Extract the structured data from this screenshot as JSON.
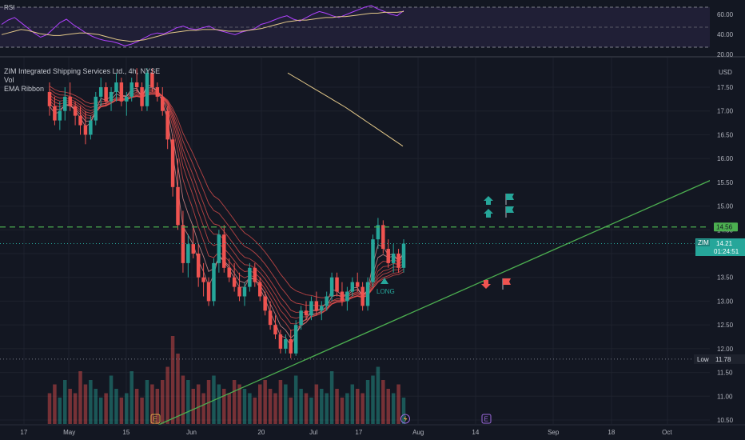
{
  "legend": {
    "title": "ZIM Integrated Shipping Services Ltd., 4h, NYSE",
    "vol": "Vol",
    "ema": "EMA Ribbon"
  },
  "rsi": {
    "label": "RSI",
    "ticks": [
      "60.00",
      "40.00",
      "20.00"
    ]
  },
  "price_axis": {
    "currency": "USD",
    "ticks": [
      "17.50",
      "17.00",
      "16.50",
      "16.00",
      "15.50",
      "15.00",
      "14.50",
      "14.00",
      "13.50",
      "13.00",
      "12.50",
      "12.00",
      "11.50",
      "11.00",
      "10.50"
    ]
  },
  "tags": {
    "level_price": "14.56",
    "ticker": "ZIM",
    "last_price": "14.21",
    "countdown": "01:24:51",
    "low_label": "Low",
    "low_price": "11.78"
  },
  "signal": {
    "text": "LONG"
  },
  "events": {
    "earnings": "E",
    "dividend": "E"
  },
  "time_axis": [
    "17",
    "May",
    "15",
    "Jun",
    "20",
    "Jul",
    "17",
    "Aug",
    "14",
    "Sep",
    "18",
    "Oct"
  ],
  "colors": {
    "up": "#26a69a",
    "down": "#ef5350",
    "trendline": "#4caf50",
    "level": "#4caf50",
    "rsi": "#b042ff",
    "rsi_ma": "#e3c889",
    "ema_ribbon": "#ef5350",
    "sma": "#e3c889"
  },
  "chart_data": {
    "type": "candlestick",
    "candles": [
      [
        17.4,
        17.6,
        16.9,
        17.1
      ],
      [
        17.1,
        17.3,
        16.7,
        16.8
      ],
      [
        16.8,
        17.2,
        16.6,
        17.0
      ],
      [
        17.0,
        17.5,
        16.8,
        17.3
      ],
      [
        17.3,
        17.6,
        17.0,
        17.1
      ],
      [
        17.1,
        17.2,
        16.7,
        16.9
      ],
      [
        16.9,
        17.1,
        16.5,
        16.7
      ],
      [
        16.7,
        17.0,
        16.3,
        16.5
      ],
      [
        16.5,
        16.9,
        16.4,
        16.8
      ],
      [
        16.8,
        17.4,
        16.7,
        17.3
      ],
      [
        17.3,
        17.7,
        17.1,
        17.5
      ],
      [
        17.5,
        17.6,
        17.1,
        17.2
      ],
      [
        17.2,
        17.5,
        17.0,
        17.4
      ],
      [
        17.4,
        17.8,
        17.2,
        17.6
      ],
      [
        17.6,
        17.7,
        17.1,
        17.2
      ],
      [
        17.2,
        17.4,
        16.9,
        17.3
      ],
      [
        17.3,
        17.7,
        17.2,
        17.6
      ],
      [
        17.6,
        17.9,
        17.4,
        17.5
      ],
      [
        17.5,
        17.6,
        17.0,
        17.1
      ],
      [
        17.1,
        17.9,
        17.0,
        17.8
      ],
      [
        17.8,
        17.9,
        17.4,
        17.5
      ],
      [
        17.5,
        17.6,
        17.2,
        17.3
      ],
      [
        17.3,
        17.5,
        16.9,
        17.0
      ],
      [
        17.0,
        17.1,
        16.2,
        16.4
      ],
      [
        16.4,
        16.5,
        15.2,
        15.4
      ],
      [
        15.4,
        16.0,
        14.5,
        14.6
      ],
      [
        14.6,
        14.9,
        13.6,
        13.8
      ],
      [
        13.8,
        14.4,
        13.5,
        14.2
      ],
      [
        14.2,
        14.6,
        13.9,
        14.0
      ],
      [
        14.0,
        14.2,
        13.3,
        13.5
      ],
      [
        13.5,
        13.8,
        13.1,
        13.4
      ],
      [
        13.4,
        13.5,
        12.9,
        13.0
      ],
      [
        13.0,
        13.9,
        12.9,
        13.8
      ],
      [
        13.8,
        14.5,
        13.6,
        14.4
      ],
      [
        14.4,
        14.6,
        13.6,
        13.7
      ],
      [
        13.7,
        13.9,
        13.4,
        13.5
      ],
      [
        13.5,
        13.8,
        13.2,
        13.3
      ],
      [
        13.3,
        13.6,
        13.0,
        13.1
      ],
      [
        13.1,
        13.4,
        12.9,
        13.3
      ],
      [
        13.3,
        13.8,
        13.2,
        13.7
      ],
      [
        13.7,
        13.8,
        13.3,
        13.4
      ],
      [
        13.4,
        13.5,
        13.0,
        13.1
      ],
      [
        13.1,
        13.2,
        12.7,
        12.8
      ],
      [
        12.8,
        13.0,
        12.4,
        12.5
      ],
      [
        12.5,
        12.7,
        12.2,
        12.3
      ],
      [
        12.3,
        12.4,
        11.9,
        12.0
      ],
      [
        12.0,
        12.3,
        11.9,
        12.2
      ],
      [
        12.2,
        12.4,
        11.8,
        11.9
      ],
      [
        11.9,
        12.6,
        11.85,
        12.5
      ],
      [
        12.5,
        12.9,
        12.4,
        12.8
      ],
      [
        12.8,
        13.0,
        12.6,
        12.7
      ],
      [
        12.7,
        13.1,
        12.6,
        13.0
      ],
      [
        13.0,
        13.2,
        12.7,
        12.8
      ],
      [
        12.8,
        13.0,
        12.6,
        12.9
      ],
      [
        12.9,
        13.2,
        12.8,
        13.1
      ],
      [
        13.1,
        13.6,
        13.0,
        13.5
      ],
      [
        13.5,
        13.6,
        13.1,
        13.2
      ],
      [
        13.2,
        13.4,
        12.9,
        13.0
      ],
      [
        13.0,
        13.3,
        12.8,
        13.2
      ],
      [
        13.2,
        13.5,
        13.1,
        13.4
      ],
      [
        13.4,
        13.6,
        13.2,
        13.3
      ],
      [
        13.3,
        13.4,
        12.8,
        12.9
      ],
      [
        12.9,
        13.5,
        12.8,
        13.4
      ],
      [
        13.4,
        14.4,
        13.3,
        14.3
      ],
      [
        14.3,
        14.75,
        14.1,
        14.6
      ],
      [
        14.6,
        14.7,
        14.0,
        14.1
      ],
      [
        14.1,
        14.3,
        13.7,
        13.8
      ],
      [
        13.8,
        14.2,
        13.6,
        14.0
      ],
      [
        14.0,
        14.1,
        13.6,
        13.7
      ],
      [
        13.7,
        14.3,
        13.6,
        14.21
      ]
    ],
    "volume": [
      0.35,
      0.45,
      0.3,
      0.5,
      0.4,
      0.35,
      0.6,
      0.45,
      0.5,
      0.4,
      0.3,
      0.35,
      0.55,
      0.4,
      0.3,
      0.35,
      0.6,
      0.4,
      0.3,
      0.5,
      0.45,
      0.4,
      0.5,
      0.65,
      1.0,
      0.8,
      0.55,
      0.5,
      0.4,
      0.45,
      0.35,
      0.5,
      0.55,
      0.45,
      0.4,
      0.35,
      0.5,
      0.45,
      0.4,
      0.35,
      0.3,
      0.45,
      0.5,
      0.4,
      0.35,
      0.5,
      0.45,
      0.3,
      0.55,
      0.4,
      0.35,
      0.3,
      0.45,
      0.4,
      0.35,
      0.6,
      0.4,
      0.3,
      0.35,
      0.45,
      0.4,
      0.35,
      0.5,
      0.55,
      0.65,
      0.5,
      0.4,
      0.35,
      0.45,
      0.3
    ],
    "rsi": [
      50,
      55,
      58,
      52,
      46,
      40,
      35,
      38,
      45,
      52,
      56,
      50,
      45,
      40,
      36,
      33,
      31,
      30,
      28,
      25,
      27,
      30,
      34,
      38,
      40,
      39,
      42,
      46,
      48,
      45,
      44,
      46,
      48,
      44,
      42,
      40,
      38,
      41,
      43,
      45,
      50,
      52,
      55,
      58,
      60,
      56,
      54,
      58,
      62,
      65,
      63,
      60,
      58,
      61,
      64,
      67,
      70,
      72,
      68,
      65,
      62,
      60,
      66
    ],
    "rsi_ma": [
      38,
      40,
      42,
      44,
      43,
      41,
      39,
      38,
      37,
      37,
      38,
      39,
      40,
      40,
      39,
      38,
      36,
      34,
      32,
      31,
      30,
      31,
      32,
      34,
      36,
      38,
      40,
      41,
      42,
      43,
      43,
      44,
      44,
      44,
      43,
      42,
      42,
      42,
      43,
      44,
      45,
      47,
      49,
      51,
      53,
      54,
      55,
      55,
      56,
      57,
      58,
      58,
      59,
      59,
      60,
      61,
      62,
      63,
      63,
      64,
      64,
      64,
      65
    ],
    "trendline": {
      "from": [
        10.3,
        "May 25"
      ],
      "to": [
        15.55,
        "Oct 10"
      ]
    },
    "level": 14.56,
    "low": 11.78,
    "ylim": [
      10.3,
      17.9
    ]
  }
}
